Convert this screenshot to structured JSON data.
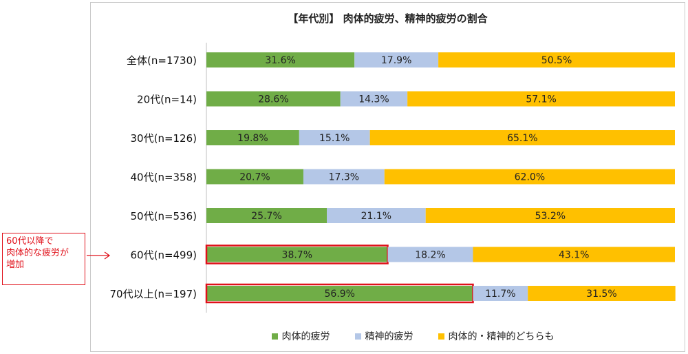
{
  "chart_data": {
    "type": "bar",
    "orientation": "horizontal",
    "stacked": true,
    "percent": true,
    "title": "【年代別】 肉体的疲労、精神的疲労の割合",
    "categories": [
      "全体(n=1730)",
      "20代(n=14)",
      "30代(n=126)",
      "40代(n=358)",
      "50代(n=536)",
      "60代(n=499)",
      "70代以上(n=197)"
    ],
    "series": [
      {
        "name": "肉体的疲労",
        "color": "#70ad47",
        "values": [
          31.6,
          28.6,
          19.8,
          20.7,
          25.7,
          38.7,
          56.9
        ]
      },
      {
        "name": "精神的疲労",
        "color": "#b4c7e7",
        "values": [
          17.9,
          14.3,
          15.1,
          17.3,
          21.1,
          18.2,
          11.7
        ]
      },
      {
        "name": "肉体的・精神的どちらも",
        "color": "#ffc000",
        "values": [
          50.5,
          57.1,
          65.1,
          62.0,
          53.2,
          43.1,
          31.5
        ]
      }
    ],
    "data_labels": [
      [
        "31.6%",
        "17.9%",
        "50.5%"
      ],
      [
        "28.6%",
        "14.3%",
        "57.1%"
      ],
      [
        "19.8%",
        "15.1%",
        "65.1%"
      ],
      [
        "20.7%",
        "17.3%",
        "62.0%"
      ],
      [
        "25.7%",
        "21.1%",
        "53.2%"
      ],
      [
        "38.7%",
        "18.2%",
        "43.1%"
      ],
      [
        "56.9%",
        "11.7%",
        "31.5%"
      ]
    ],
    "xlim": [
      0,
      100
    ],
    "legend_position": "bottom",
    "highlighted": [
      {
        "category": "60代(n=499)",
        "series": "肉体的疲労"
      },
      {
        "category": "70代以上(n=197)",
        "series": "肉体的疲労"
      }
    ],
    "highlight_color": "#e0101a"
  },
  "annotation": {
    "text": "60代以降で\n肉体的な疲労が\n増加",
    "color": "#e0101a"
  }
}
